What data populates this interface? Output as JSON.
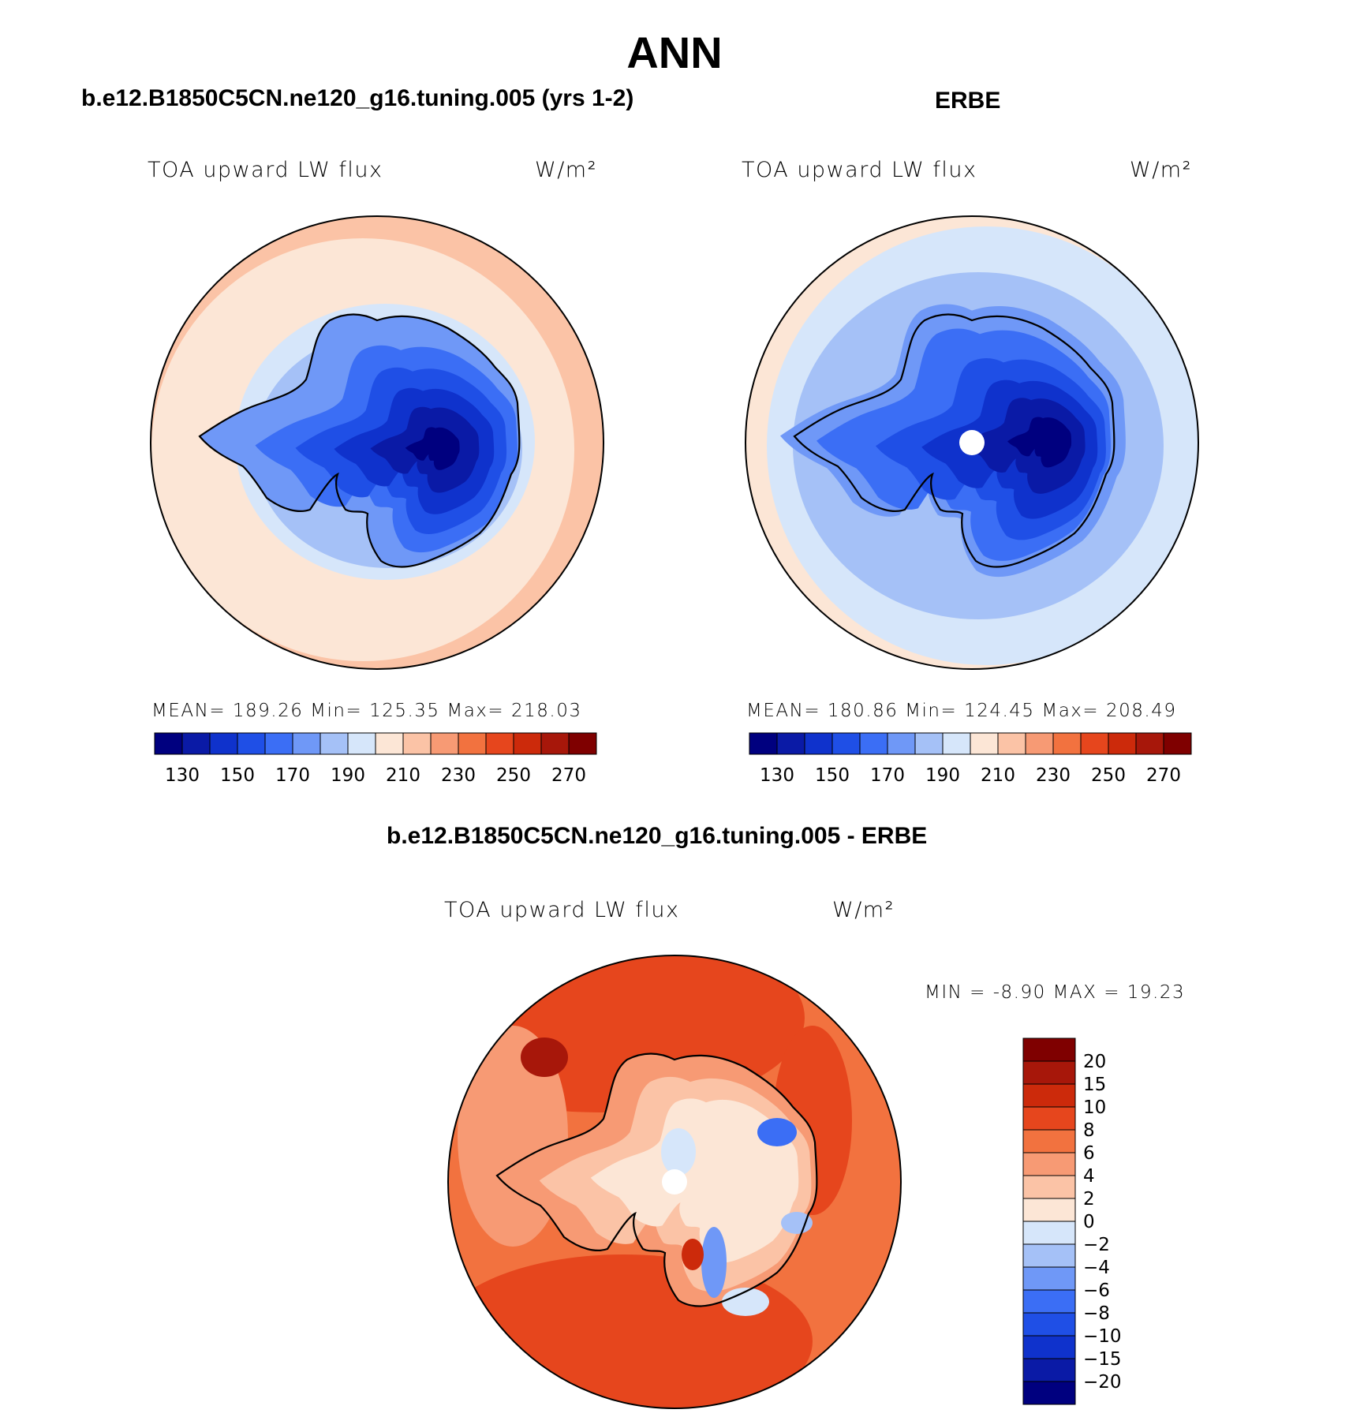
{
  "header": {
    "title": "ANN",
    "case_panel_title": "b.e12.B1850C5CN.ne120_g16.tuning.005 (yrs 1-2)",
    "obs_panel_title": "ERBE",
    "diff_panel_title": "b.e12.B1850C5CN.ne120_g16.tuning.005 - ERBE"
  },
  "panels": {
    "case": {
      "variable": "TOA upward LW flux",
      "units": "W/m²",
      "stats": "MEAN=  189.26   Min=  125.35   Max=  218.03"
    },
    "obs": {
      "variable": "TOA upward LW flux",
      "units": "W/m²",
      "stats": "MEAN=  180.86   Min=  124.45   Max=  208.49"
    },
    "diff": {
      "variable": "TOA upward LW flux",
      "units": "W/m²",
      "stats": "MIN =    -8.90  MAX =    19.23"
    }
  },
  "chart_data": [
    {
      "type": "heatmap",
      "projection": "south-polar-stereographic",
      "title": "b.e12.B1850C5CN.ne120_g16.tuning.005 (yrs 1-2)",
      "variable": "TOA upward LW flux",
      "units": "W/m²",
      "mean": 189.26,
      "min": 125.35,
      "max": 218.03,
      "contour_levels": [
        130,
        140,
        150,
        160,
        170,
        180,
        190,
        200,
        210,
        220,
        230,
        240,
        250,
        260,
        270
      ],
      "colorbar_tick_labels": [
        "130",
        "150",
        "170",
        "190",
        "210",
        "230",
        "250",
        "270"
      ],
      "colorbar_orientation": "horizontal"
    },
    {
      "type": "heatmap",
      "projection": "south-polar-stereographic",
      "title": "ERBE",
      "variable": "TOA upward LW flux",
      "units": "W/m²",
      "mean": 180.86,
      "min": 124.45,
      "max": 208.49,
      "contour_levels": [
        130,
        140,
        150,
        160,
        170,
        180,
        190,
        200,
        210,
        220,
        230,
        240,
        250,
        260,
        270
      ],
      "colorbar_tick_labels": [
        "130",
        "150",
        "170",
        "190",
        "210",
        "230",
        "250",
        "270"
      ],
      "colorbar_orientation": "horizontal"
    },
    {
      "type": "heatmap",
      "projection": "south-polar-stereographic",
      "title": "b.e12.B1850C5CN.ne120_g16.tuning.005 - ERBE",
      "variable": "TOA upward LW flux",
      "units": "W/m²",
      "min": -8.9,
      "max": 19.23,
      "contour_levels": [
        -20,
        -15,
        -10,
        -8,
        -6,
        -4,
        -2,
        0,
        2,
        4,
        6,
        8,
        10,
        15,
        20
      ],
      "colorbar_tick_labels": [
        "20",
        "15",
        "10",
        "8",
        "6",
        "4",
        "2",
        "0",
        "−2",
        "−4",
        "−6",
        "−8",
        "−10",
        "−15",
        "−20"
      ],
      "colorbar_orientation": "vertical"
    }
  ],
  "colormap": {
    "field": [
      "#00007f",
      "#0a1aa6",
      "#0f32cc",
      "#1f4fe6",
      "#3b6ef5",
      "#6f98f7",
      "#a5c1f7",
      "#d6e6fa",
      "#fce6d6",
      "#fbc3a6",
      "#f79a74",
      "#f2723f",
      "#e6461d",
      "#cc2a0b",
      "#a7170a",
      "#7f0000"
    ],
    "diff": [
      "#7f0000",
      "#a7170a",
      "#cc2a0b",
      "#e6461d",
      "#f2723f",
      "#f79a74",
      "#fbc3a6",
      "#fce6d6",
      "#d6e6fa",
      "#a5c1f7",
      "#6f98f7",
      "#3b6ef5",
      "#1f4fe6",
      "#0f32cc",
      "#0a1aa6",
      "#00007f"
    ]
  }
}
